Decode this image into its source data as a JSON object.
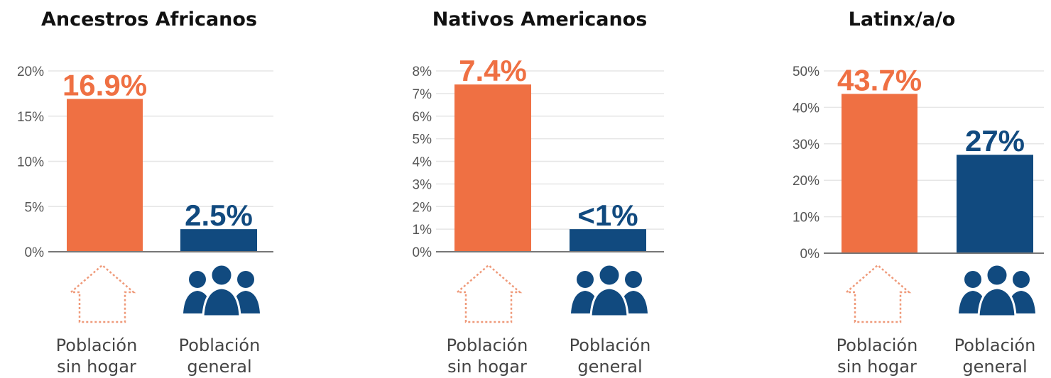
{
  "palette": {
    "homeless": "#ef7043",
    "general": "#114a7f",
    "grid": "#e6e6e6",
    "axis": "#777777"
  },
  "icons": {
    "homeless": "house-outline-icon",
    "general": "people-group-icon"
  },
  "labels": {
    "homeless": [
      "Población",
      "sin hogar"
    ],
    "general": [
      "Población",
      "general"
    ]
  },
  "chart_data": [
    {
      "type": "bar",
      "title": "Ancestros Africanos",
      "categories": [
        "Población sin hogar",
        "Población general"
      ],
      "values": [
        16.9,
        2.5
      ],
      "value_labels": [
        "16.9%",
        "2.5%"
      ],
      "yticks": [
        0,
        5,
        10,
        15,
        20
      ],
      "ytick_labels": [
        "0%",
        "5%",
        "10%",
        "15%",
        "20%"
      ],
      "ylim": [
        0,
        20
      ],
      "grid": true
    },
    {
      "type": "bar",
      "title": "Nativos Americanos",
      "categories": [
        "Población sin hogar",
        "Población general"
      ],
      "values": [
        7.4,
        1
      ],
      "value_labels": [
        "7.4%",
        "<1%"
      ],
      "yticks": [
        0,
        1,
        2,
        3,
        4,
        5,
        6,
        7,
        8
      ],
      "ytick_labels": [
        "0%",
        "1%",
        "2%",
        "3%",
        "4%",
        "5%",
        "6%",
        "7%",
        "8%"
      ],
      "ylim": [
        0,
        8
      ],
      "grid": true
    },
    {
      "type": "bar",
      "title": "Latinx/a/o",
      "categories": [
        "Población sin hogar",
        "Población general"
      ],
      "values": [
        43.7,
        27
      ],
      "value_labels": [
        "43.7%",
        "27%"
      ],
      "yticks": [
        0,
        10,
        20,
        30,
        40,
        50
      ],
      "ytick_labels": [
        "0%",
        "10%",
        "20%",
        "30%",
        "40%",
        "50%"
      ],
      "ylim": [
        0,
        50
      ],
      "grid": true
    }
  ]
}
